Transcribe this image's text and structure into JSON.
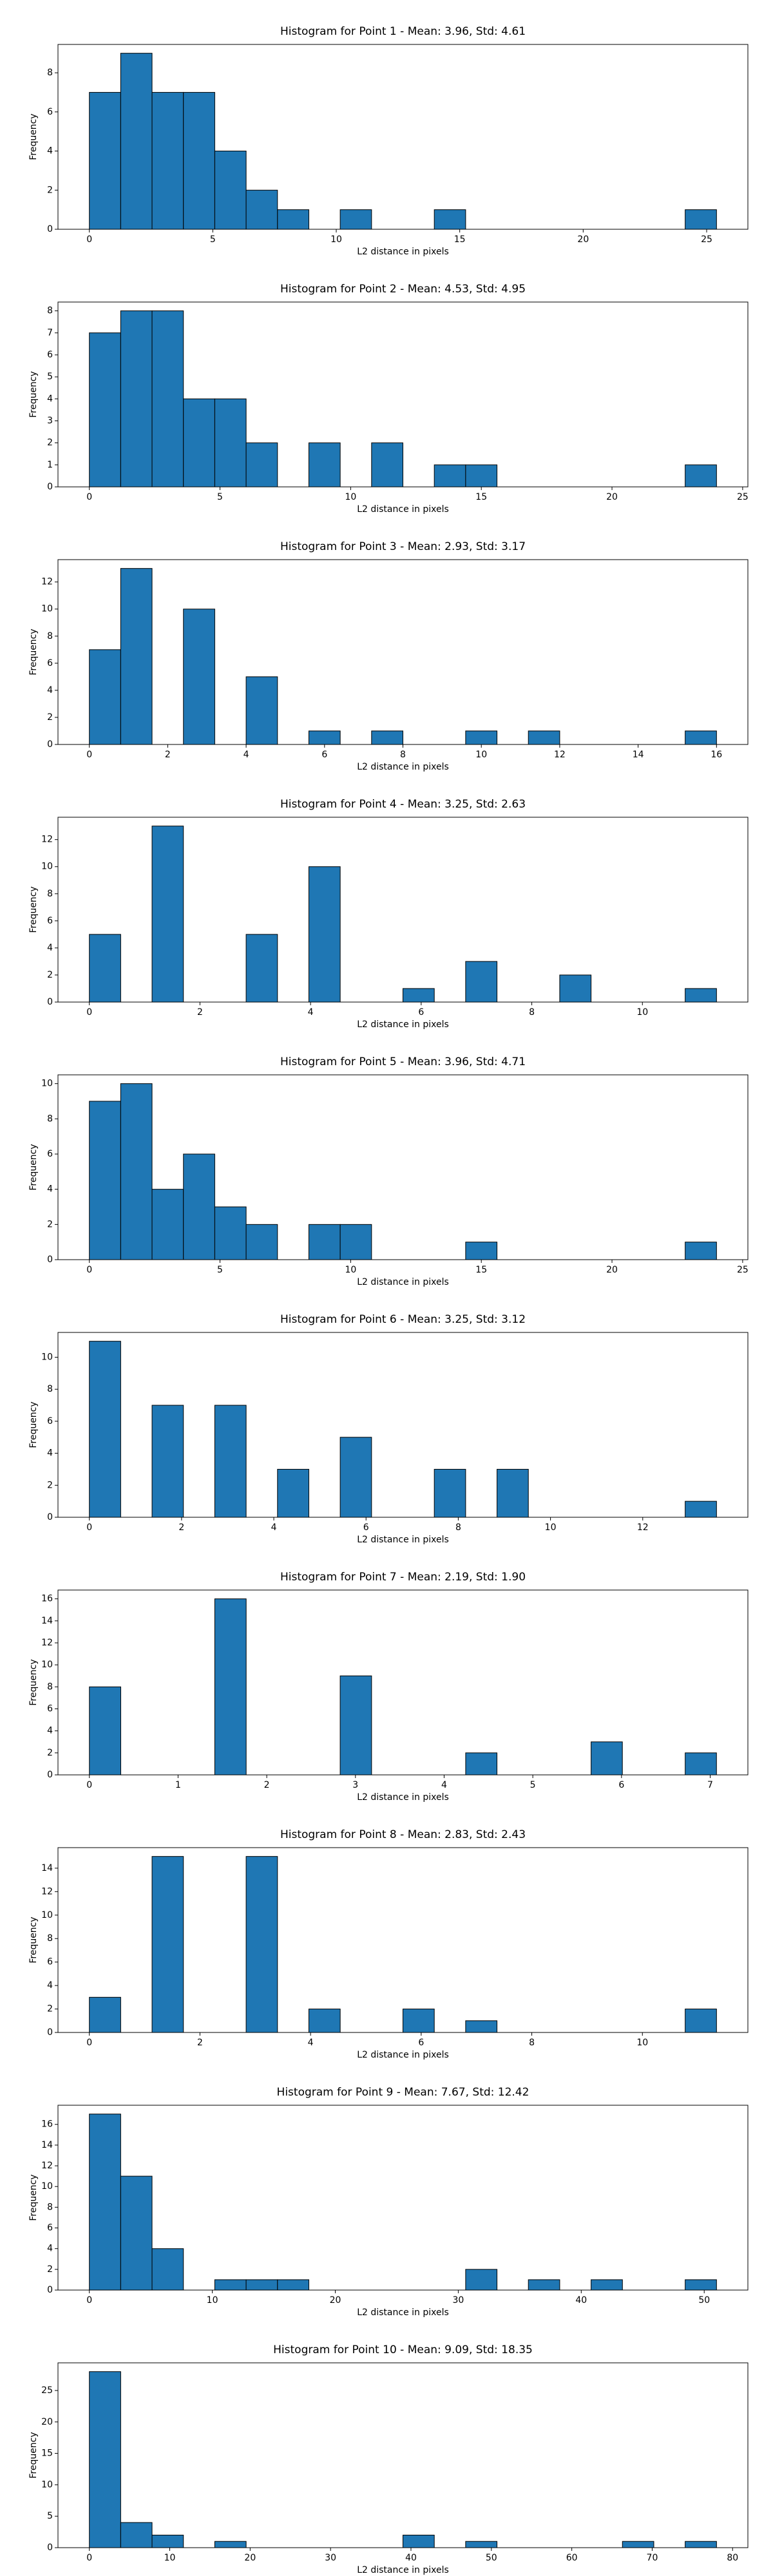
{
  "chart_data": [
    {
      "type": "histogram",
      "title": "Histogram for Point 1 - Mean: 3.96, Std: 4.61",
      "x_label": "L2 distance in pixels",
      "y_label": "Frequency",
      "color": "#1f77b4",
      "bins": [
        0,
        1.27,
        2.54,
        3.81,
        5.08,
        6.35,
        7.62,
        8.89,
        10.16,
        11.43,
        12.7,
        13.97,
        15.24,
        16.51,
        17.78,
        19.05,
        20.32,
        21.59,
        22.86,
        24.13,
        25.4
      ],
      "counts": [
        7,
        9,
        7,
        7,
        4,
        2,
        1,
        0,
        1,
        0,
        0,
        1,
        0,
        0,
        0,
        0,
        0,
        0,
        0,
        1
      ],
      "xlim": [
        -1.27,
        26.67
      ],
      "xticks": [
        0,
        5,
        10,
        15,
        20,
        25
      ],
      "ylim": [
        0,
        9.45
      ],
      "yticks": [
        0,
        2,
        4,
        6,
        8
      ]
    },
    {
      "type": "histogram",
      "title": "Histogram for Point 2 - Mean: 4.53, Std: 4.95",
      "x_label": "L2 distance in pixels",
      "y_label": "Frequency",
      "color": "#1f77b4",
      "bins": [
        0,
        1.2,
        2.4,
        3.6,
        4.8,
        6,
        7.2,
        8.4,
        9.6,
        10.8,
        12,
        13.2,
        14.4,
        15.6,
        16.8,
        18,
        19.2,
        20.4,
        21.6,
        22.8,
        24
      ],
      "counts": [
        7,
        8,
        8,
        4,
        4,
        2,
        0,
        2,
        0,
        2,
        0,
        1,
        1,
        0,
        0,
        0,
        0,
        0,
        0,
        1
      ],
      "xlim": [
        -1.2,
        25.2
      ],
      "xticks": [
        0,
        5,
        10,
        15,
        20,
        25
      ],
      "ylim": [
        0,
        8.4
      ],
      "yticks": [
        0,
        1,
        2,
        3,
        4,
        5,
        6,
        7,
        8
      ]
    },
    {
      "type": "histogram",
      "title": "Histogram for Point 3 - Mean: 2.93, Std: 3.17",
      "x_label": "L2 distance in pixels",
      "y_label": "Frequency",
      "color": "#1f77b4",
      "bins": [
        0,
        0.8,
        1.6,
        2.4,
        3.2,
        4,
        4.8,
        5.6,
        6.4,
        7.2,
        8,
        8.8,
        9.6,
        10.4,
        11.2,
        12,
        12.8,
        13.6,
        14.4,
        15.2,
        16
      ],
      "counts": [
        7,
        13,
        0,
        10,
        0,
        5,
        0,
        1,
        0,
        1,
        0,
        0,
        1,
        0,
        1,
        0,
        0,
        0,
        0,
        1
      ],
      "xlim": [
        -0.8,
        16.8
      ],
      "xticks": [
        0,
        2,
        4,
        6,
        8,
        10,
        12,
        14,
        16
      ],
      "ylim": [
        0,
        13.65
      ],
      "yticks": [
        0,
        2,
        4,
        6,
        8,
        10,
        12
      ]
    },
    {
      "type": "histogram",
      "title": "Histogram for Point 4 - Mean: 3.25, Std: 2.63",
      "x_label": "L2 distance in pixels",
      "y_label": "Frequency",
      "color": "#1f77b4",
      "bins": [
        0,
        0.567,
        1.134,
        1.701,
        2.268,
        2.835,
        3.402,
        3.969,
        4.536,
        5.103,
        5.67,
        6.237,
        6.804,
        7.371,
        7.938,
        8.505,
        9.072,
        9.639,
        10.206,
        10.773,
        11.34
      ],
      "counts": [
        5,
        0,
        13,
        0,
        0,
        5,
        0,
        10,
        0,
        0,
        1,
        0,
        3,
        0,
        0,
        2,
        0,
        0,
        0,
        1
      ],
      "xlim": [
        -0.567,
        11.907
      ],
      "xticks": [
        0,
        2,
        4,
        6,
        8,
        10
      ],
      "ylim": [
        0,
        13.65
      ],
      "yticks": [
        0,
        2,
        4,
        6,
        8,
        10,
        12
      ]
    },
    {
      "type": "histogram",
      "title": "Histogram for Point 5 - Mean: 3.96, Std: 4.71",
      "x_label": "L2 distance in pixels",
      "y_label": "Frequency",
      "color": "#1f77b4",
      "bins": [
        0,
        1.2,
        2.4,
        3.6,
        4.8,
        6,
        7.2,
        8.4,
        9.6,
        10.8,
        12,
        13.2,
        14.4,
        15.6,
        16.8,
        18,
        19.2,
        20.4,
        21.6,
        22.8,
        24
      ],
      "counts": [
        9,
        10,
        4,
        6,
        3,
        2,
        0,
        2,
        2,
        0,
        0,
        0,
        1,
        0,
        0,
        0,
        0,
        0,
        0,
        1
      ],
      "xlim": [
        -1.2,
        25.2
      ],
      "xticks": [
        0,
        5,
        10,
        15,
        20,
        25
      ],
      "ylim": [
        0,
        10.5
      ],
      "yticks": [
        0,
        2,
        4,
        6,
        8,
        10
      ]
    },
    {
      "type": "histogram",
      "title": "Histogram for Point 6 - Mean: 3.25, Std: 3.12",
      "x_label": "L2 distance in pixels",
      "y_label": "Frequency",
      "color": "#1f77b4",
      "bins": [
        0,
        0.68,
        1.36,
        2.04,
        2.72,
        3.4,
        4.08,
        4.76,
        5.44,
        6.12,
        6.8,
        7.48,
        8.16,
        8.84,
        9.52,
        10.2,
        10.88,
        11.56,
        12.24,
        12.92,
        13.6
      ],
      "counts": [
        11,
        0,
        7,
        0,
        7,
        0,
        3,
        0,
        5,
        0,
        0,
        3,
        0,
        3,
        0,
        0,
        0,
        0,
        0,
        1
      ],
      "xlim": [
        -0.68,
        14.28
      ],
      "xticks": [
        0,
        2,
        4,
        6,
        8,
        10,
        12
      ],
      "ylim": [
        0,
        11.55
      ],
      "yticks": [
        0,
        2,
        4,
        6,
        8,
        10
      ]
    },
    {
      "type": "histogram",
      "title": "Histogram for Point 7 - Mean: 2.19, Std: 1.90",
      "x_label": "L2 distance in pixels",
      "y_label": "Frequency",
      "color": "#1f77b4",
      "bins": [
        0,
        0.354,
        0.707,
        1.061,
        1.414,
        1.768,
        2.121,
        2.475,
        2.828,
        3.182,
        3.536,
        3.889,
        4.243,
        4.596,
        4.95,
        5.303,
        5.657,
        6.01,
        6.364,
        6.718,
        7.071
      ],
      "counts": [
        8,
        0,
        0,
        0,
        16,
        0,
        0,
        0,
        9,
        0,
        0,
        0,
        2,
        0,
        0,
        0,
        3,
        0,
        0,
        2
      ],
      "xlim": [
        -0.354,
        7.425
      ],
      "xticks": [
        0,
        1,
        2,
        3,
        4,
        5,
        6,
        7
      ],
      "ylim": [
        0,
        16.8
      ],
      "yticks": [
        0,
        2,
        4,
        6,
        8,
        10,
        12,
        14,
        16
      ]
    },
    {
      "type": "histogram",
      "title": "Histogram for Point 8 - Mean: 2.83, Std: 2.43",
      "x_label": "L2 distance in pixels",
      "y_label": "Frequency",
      "color": "#1f77b4",
      "bins": [
        0,
        0.567,
        1.134,
        1.701,
        2.268,
        2.835,
        3.402,
        3.969,
        4.536,
        5.103,
        5.67,
        6.237,
        6.804,
        7.371,
        7.938,
        8.505,
        9.072,
        9.639,
        10.206,
        10.773,
        11.34
      ],
      "counts": [
        3,
        0,
        15,
        0,
        0,
        15,
        0,
        2,
        0,
        0,
        2,
        0,
        1,
        0,
        0,
        0,
        0,
        0,
        0,
        2
      ],
      "xlim": [
        -0.567,
        11.907
      ],
      "xticks": [
        0,
        2,
        4,
        6,
        8,
        10
      ],
      "ylim": [
        0,
        15.75
      ],
      "yticks": [
        0,
        2,
        4,
        6,
        8,
        10,
        12,
        14
      ]
    },
    {
      "type": "histogram",
      "title": "Histogram for Point 9 - Mean: 7.67, Std: 12.42",
      "x_label": "L2 distance in pixels",
      "y_label": "Frequency",
      "color": "#1f77b4",
      "bins": [
        0,
        2.55,
        5.1,
        7.65,
        10.2,
        12.75,
        15.3,
        17.85,
        20.4,
        22.95,
        25.5,
        28.05,
        30.6,
        33.15,
        35.7,
        38.25,
        40.8,
        43.35,
        45.9,
        48.45,
        51
      ],
      "counts": [
        17,
        11,
        4,
        0,
        1,
        1,
        1,
        0,
        0,
        0,
        0,
        0,
        2,
        0,
        1,
        0,
        1,
        0,
        0,
        1
      ],
      "xlim": [
        -2.55,
        53.55
      ],
      "xticks": [
        0,
        10,
        20,
        30,
        40,
        50
      ],
      "ylim": [
        0,
        17.85
      ],
      "yticks": [
        0,
        2,
        4,
        6,
        8,
        10,
        12,
        14,
        16
      ]
    },
    {
      "type": "histogram",
      "title": "Histogram for Point 10 - Mean: 9.09, Std: 18.35",
      "x_label": "L2 distance in pixels",
      "y_label": "Frequency",
      "color": "#1f77b4",
      "bins": [
        0,
        3.9,
        7.8,
        11.7,
        15.6,
        19.5,
        23.4,
        27.3,
        31.2,
        35.1,
        39,
        42.9,
        46.8,
        50.7,
        54.6,
        58.5,
        62.4,
        66.3,
        70.2,
        74.1,
        78
      ],
      "counts": [
        28,
        4,
        2,
        0,
        1,
        0,
        0,
        0,
        0,
        0,
        2,
        0,
        1,
        0,
        0,
        0,
        0,
        1,
        0,
        1
      ],
      "xlim": [
        -3.9,
        81.9
      ],
      "xticks": [
        0,
        10,
        20,
        30,
        40,
        50,
        60,
        70,
        80
      ],
      "ylim": [
        0,
        29.4
      ],
      "yticks": [
        0,
        5,
        10,
        15,
        20,
        25
      ]
    }
  ]
}
